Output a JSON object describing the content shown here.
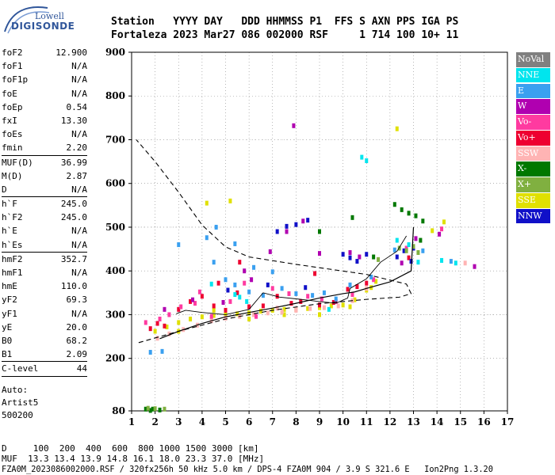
{
  "logo": {
    "top": "Lowell",
    "main": "DIGISONDE"
  },
  "header": {
    "line1": "Station   YYYY DAY   DDD HHMMSS P1  FFS S AXN PPS IGA PS",
    "line2": "Fortaleza 2023 Mar27 086 002000 RSF     1 714 100 10+ 11"
  },
  "params": [
    {
      "k": "foF2",
      "v": "12.900"
    },
    {
      "k": "foF1",
      "v": "N/A"
    },
    {
      "k": "foF1p",
      "v": "N/A"
    },
    {
      "k": "foE",
      "v": "N/A"
    },
    {
      "k": "foEp",
      "v": "0.54"
    },
    {
      "k": "fxI",
      "v": "13.30"
    },
    {
      "k": "foEs",
      "v": "N/A"
    },
    {
      "k": "fmin",
      "v": "2.20"
    },
    {
      "sep": true
    },
    {
      "k": "MUF(D)",
      "v": "36.99"
    },
    {
      "k": "M(D)",
      "v": "2.87"
    },
    {
      "k": "D",
      "v": "N/A"
    },
    {
      "sep": true
    },
    {
      "k": "h`F",
      "v": "245.0"
    },
    {
      "k": "h`F2",
      "v": "245.0"
    },
    {
      "k": "h`E",
      "v": "N/A"
    },
    {
      "k": "h`Es",
      "v": "N/A"
    },
    {
      "sep": true
    },
    {
      "k": "hmF2",
      "v": "352.7"
    },
    {
      "k": "hmF1",
      "v": "N/A"
    },
    {
      "k": "hmE",
      "v": "110.0"
    },
    {
      "k": "yF2",
      "v": "69.3"
    },
    {
      "k": "yF1",
      "v": "N/A"
    },
    {
      "k": "yE",
      "v": "20.0"
    },
    {
      "k": "B0",
      "v": "68.2"
    },
    {
      "k": "B1",
      "v": "2.09"
    },
    {
      "sep": true
    },
    {
      "k": "C-level",
      "v": "44"
    },
    {
      "sep": true
    }
  ],
  "auto": {
    "l1": "Auto:",
    "l2": "Artist5",
    "l3": "500200"
  },
  "bottom": {
    "d_line": "D     100  200  400  600  800 1000 1500 3000 [km]",
    "muf_line": "MUF  13.3 13.4 13.9 14.8 16.1 18.0 23.3 37.0 [MHz]",
    "file_line": "FZA0M_2023086002000.RSF / 320fx256h 50 kHz 5.0 km / DPS-4 FZA0M 904 / 3.9 S 321.6 E   Ion2Png 1.3.20"
  },
  "legend": [
    {
      "label": "NoVal",
      "color": "#808080"
    },
    {
      "label": "NNE",
      "color": "#00e5ee"
    },
    {
      "label": "E",
      "color": "#3aa0f0"
    },
    {
      "label": "W",
      "color": "#b000b0"
    },
    {
      "label": "Vo-",
      "color": "#ff3aa0"
    },
    {
      "label": "Vo+",
      "color": "#ee0030"
    },
    {
      "label": "SSW",
      "color": "#ffb4b4"
    },
    {
      "label": "X-",
      "color": "#007800"
    },
    {
      "label": "X+",
      "color": "#80b040"
    },
    {
      "label": "SSE",
      "color": "#e0e000"
    },
    {
      "label": "NNW",
      "color": "#1010c8"
    }
  ],
  "chart_data": {
    "type": "scatter",
    "title": "",
    "xlabel": "",
    "ylabel": "",
    "xlim": [
      1,
      17
    ],
    "ylim": [
      80,
      900
    ],
    "x_ticks": [
      1,
      2,
      3,
      4,
      5,
      6,
      7,
      8,
      9,
      10,
      11,
      12,
      13,
      14,
      15,
      16,
      17
    ],
    "y_ticks": [
      80,
      200,
      300,
      400,
      500,
      600,
      700,
      800,
      900
    ],
    "grid": "dotted",
    "series": [
      {
        "name": "SSE",
        "color": "#e0e000",
        "points": [
          [
            2.0,
            262
          ],
          [
            2.5,
            272
          ],
          [
            3.0,
            282
          ],
          [
            3.5,
            290
          ],
          [
            4.0,
            295
          ],
          [
            4.5,
            298
          ],
          [
            5.0,
            300
          ],
          [
            5.5,
            302
          ],
          [
            6.0,
            304
          ],
          [
            6.5,
            308
          ],
          [
            7.0,
            310
          ],
          [
            7.5,
            312
          ],
          [
            8.0,
            312
          ],
          [
            8.5,
            314
          ],
          [
            9.0,
            316
          ],
          [
            9.5,
            320
          ],
          [
            10.0,
            322
          ],
          [
            10.5,
            334
          ],
          [
            11.0,
            356
          ],
          [
            11.4,
            376
          ],
          [
            3.0,
            262
          ],
          [
            4.5,
            310
          ],
          [
            6.0,
            290
          ],
          [
            7.5,
            300
          ],
          [
            9.0,
            300
          ],
          [
            10.3,
            318
          ],
          [
            11.2,
            362
          ],
          [
            4.2,
            555
          ],
          [
            5.2,
            560
          ],
          [
            12.3,
            725
          ],
          [
            13.8,
            492
          ],
          [
            14.3,
            512
          ]
        ]
      },
      {
        "name": "SSW",
        "color": "#ffb4b4",
        "points": [
          [
            2.1,
            246
          ],
          [
            2.6,
            256
          ],
          [
            3.2,
            266
          ],
          [
            3.8,
            276
          ],
          [
            4.4,
            286
          ],
          [
            5.0,
            292
          ],
          [
            5.6,
            296
          ],
          [
            6.2,
            300
          ],
          [
            6.8,
            304
          ],
          [
            7.4,
            306
          ],
          [
            8.0,
            310
          ],
          [
            8.6,
            314
          ],
          [
            9.2,
            316
          ],
          [
            9.8,
            320
          ],
          [
            10.4,
            332
          ],
          [
            11.0,
            360
          ],
          [
            8.0,
            312
          ],
          [
            7.2,
            315
          ],
          [
            15.2,
            418
          ]
        ]
      },
      {
        "name": "Vo+",
        "color": "#ee0030",
        "points": [
          [
            1.8,
            268
          ],
          [
            2.1,
            280
          ],
          [
            2.4,
            274
          ],
          [
            3.0,
            312
          ],
          [
            3.5,
            330
          ],
          [
            4.0,
            342
          ],
          [
            4.5,
            320
          ],
          [
            5.0,
            310
          ],
          [
            5.5,
            350
          ],
          [
            6.0,
            318
          ],
          [
            6.6,
            320
          ],
          [
            7.2,
            342
          ],
          [
            7.8,
            326
          ],
          [
            8.2,
            330
          ],
          [
            9.0,
            322
          ],
          [
            9.6,
            328
          ],
          [
            10.2,
            358
          ],
          [
            10.6,
            364
          ],
          [
            11.0,
            372
          ],
          [
            12.8,
            430
          ],
          [
            4.7,
            372
          ],
          [
            5.6,
            420
          ],
          [
            8.8,
            394
          ]
        ]
      },
      {
        "name": "Vo-",
        "color": "#ff3aa0",
        "points": [
          [
            1.6,
            282
          ],
          [
            2.2,
            290
          ],
          [
            2.6,
            300
          ],
          [
            3.1,
            318
          ],
          [
            3.7,
            326
          ],
          [
            4.4,
            296
          ],
          [
            5.2,
            330
          ],
          [
            5.8,
            372
          ],
          [
            6.3,
            296
          ],
          [
            7.0,
            360
          ],
          [
            7.7,
            348
          ],
          [
            8.5,
            342
          ],
          [
            9.1,
            336
          ],
          [
            9.7,
            330
          ],
          [
            10.4,
            346
          ],
          [
            11.3,
            380
          ],
          [
            12.7,
            452
          ],
          [
            14.2,
            496
          ],
          [
            3.9,
            352
          ]
        ]
      },
      {
        "name": "W",
        "color": "#b000b0",
        "points": [
          [
            2.4,
            312
          ],
          [
            3.6,
            334
          ],
          [
            4.9,
            328
          ],
          [
            6.1,
            380
          ],
          [
            6.9,
            444
          ],
          [
            7.6,
            490
          ],
          [
            8.3,
            514
          ],
          [
            9.0,
            440
          ],
          [
            10.3,
            442
          ],
          [
            10.7,
            432
          ],
          [
            12.5,
            418
          ],
          [
            13.1,
            474
          ],
          [
            14.1,
            484
          ],
          [
            15.6,
            410
          ],
          [
            7.9,
            732
          ],
          [
            5.8,
            400
          ]
        ]
      },
      {
        "name": "NNW",
        "color": "#1010c8",
        "points": [
          [
            7.2,
            490
          ],
          [
            7.6,
            502
          ],
          [
            8.0,
            506
          ],
          [
            8.5,
            516
          ],
          [
            10.0,
            438
          ],
          [
            10.3,
            430
          ],
          [
            10.6,
            422
          ],
          [
            11.0,
            438
          ],
          [
            12.3,
            432
          ],
          [
            12.6,
            446
          ],
          [
            13.0,
            452
          ],
          [
            12.9,
            422
          ],
          [
            8.4,
            362
          ],
          [
            6.8,
            368
          ],
          [
            5.1,
            356
          ]
        ]
      },
      {
        "name": "E",
        "color": "#3aa0f0",
        "points": [
          [
            1.8,
            214
          ],
          [
            2.3,
            216
          ],
          [
            3.0,
            460
          ],
          [
            4.2,
            476
          ],
          [
            4.5,
            420
          ],
          [
            5.0,
            380
          ],
          [
            5.4,
            368
          ],
          [
            6.0,
            352
          ],
          [
            6.6,
            344
          ],
          [
            7.0,
            398
          ],
          [
            7.4,
            360
          ],
          [
            8.0,
            348
          ],
          [
            8.7,
            344
          ],
          [
            9.2,
            350
          ],
          [
            9.7,
            336
          ],
          [
            10.3,
            368
          ],
          [
            11.2,
            386
          ],
          [
            12.2,
            448
          ],
          [
            13.4,
            446
          ],
          [
            14.6,
            422
          ],
          [
            4.6,
            500
          ],
          [
            5.4,
            462
          ],
          [
            6.2,
            408
          ]
        ]
      },
      {
        "name": "NNE",
        "color": "#00e5ee",
        "points": [
          [
            4.4,
            370
          ],
          [
            5.4,
            346
          ],
          [
            5.9,
            330
          ],
          [
            10.8,
            660
          ],
          [
            11.0,
            652
          ],
          [
            12.3,
            470
          ],
          [
            12.8,
            460
          ],
          [
            13.2,
            420
          ],
          [
            14.2,
            424
          ],
          [
            14.8,
            418
          ],
          [
            5.6,
            340
          ],
          [
            9.4,
            312
          ]
        ]
      },
      {
        "name": "X-",
        "color": "#007800",
        "points": [
          [
            12.2,
            552
          ],
          [
            12.5,
            540
          ],
          [
            12.8,
            532
          ],
          [
            13.1,
            526
          ],
          [
            13.4,
            514
          ],
          [
            11.3,
            432
          ],
          [
            10.4,
            522
          ],
          [
            9.0,
            490
          ],
          [
            1.6,
            84
          ],
          [
            1.9,
            84
          ],
          [
            2.2,
            82
          ],
          [
            1.8,
            81
          ],
          [
            13.3,
            470
          ]
        ]
      },
      {
        "name": "X+",
        "color": "#80b040",
        "points": [
          [
            12.4,
            452
          ],
          [
            12.7,
            446
          ],
          [
            13.0,
            456
          ],
          [
            13.2,
            442
          ],
          [
            11.5,
            426
          ],
          [
            1.7,
            86
          ],
          [
            2.0,
            85
          ],
          [
            2.4,
            84
          ]
        ]
      }
    ],
    "profile_line": [
      [
        2.2,
        245
      ],
      [
        3.0,
        262
      ],
      [
        4.0,
        280
      ],
      [
        5.0,
        295
      ],
      [
        6.0,
        305
      ],
      [
        7.0,
        315
      ],
      [
        8.0,
        326
      ],
      [
        9.0,
        338
      ],
      [
        10.0,
        348
      ],
      [
        10.5,
        352
      ],
      [
        11.0,
        360
      ],
      [
        12.0,
        375
      ],
      [
        12.9,
        400
      ],
      [
        13.0,
        500
      ]
    ],
    "profile_curve": [
      [
        1.3,
        236
      ],
      [
        3.0,
        262
      ],
      [
        5.0,
        290
      ],
      [
        7.0,
        310
      ],
      [
        9.0,
        325
      ],
      [
        11.0,
        335
      ],
      [
        12.4,
        340
      ],
      [
        12.9,
        348
      ],
      [
        12.7,
        370
      ],
      [
        11.0,
        392
      ],
      [
        8.0,
        415
      ],
      [
        6.0,
        432
      ],
      [
        5.0,
        455
      ],
      [
        4.0,
        505
      ],
      [
        3.0,
        580
      ],
      [
        2.0,
        650
      ],
      [
        1.2,
        700
      ]
    ],
    "trace_line": [
      [
        2.9,
        302
      ],
      [
        3.3,
        310
      ],
      [
        4.0,
        305
      ],
      [
        5.0,
        300
      ],
      [
        6.0,
        312
      ],
      [
        6.6,
        350
      ],
      [
        7.3,
        340
      ],
      [
        8.2,
        335
      ],
      [
        9.0,
        330
      ],
      [
        9.7,
        326
      ],
      [
        10.2,
        338
      ],
      [
        10.3,
        360
      ],
      [
        11.0,
        382
      ],
      [
        11.6,
        420
      ],
      [
        12.3,
        445
      ],
      [
        12.7,
        480
      ]
    ]
  }
}
